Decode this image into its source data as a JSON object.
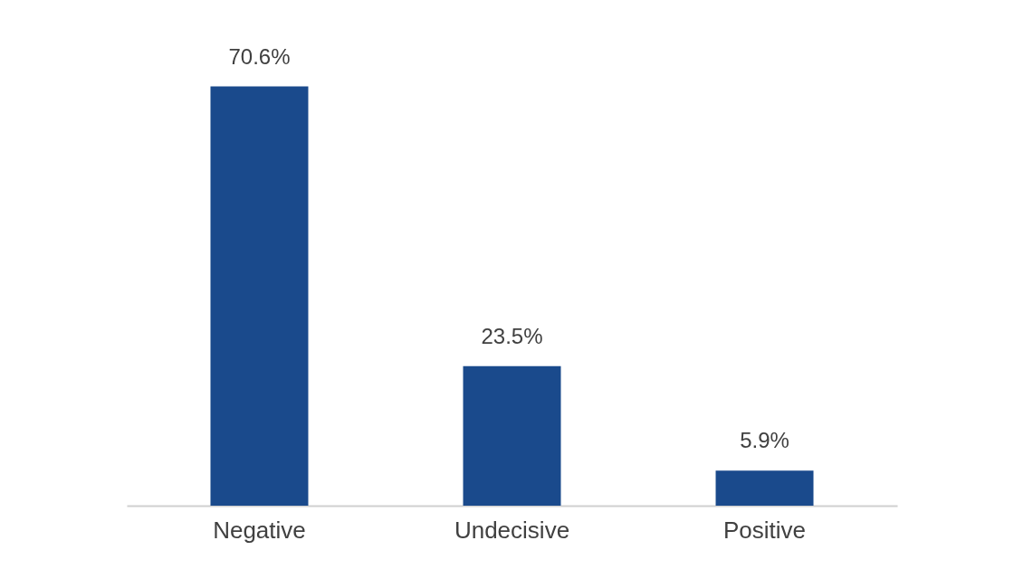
{
  "chart_data": {
    "type": "bar",
    "categories": [
      "Negative",
      "Undecisive",
      "Positive"
    ],
    "values": [
      70.6,
      23.5,
      5.9
    ],
    "value_labels": [
      "70.6%",
      "23.5%",
      "5.9%"
    ],
    "color": "#1a4a8c"
  }
}
